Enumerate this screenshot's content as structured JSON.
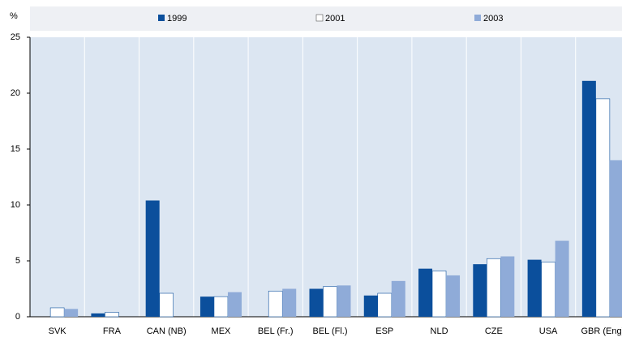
{
  "chart_data": {
    "type": "bar",
    "y_label": "%",
    "categories": [
      "SVK",
      "FRA",
      "CAN (NB)",
      "MEX",
      "BEL (Fr.)",
      "BEL (Fl.)",
      "ESP",
      "NLD",
      "CZE",
      "USA",
      "GBR (Eng)"
    ],
    "series": [
      {
        "name": "1999",
        "color": "#0b4f9c",
        "values": [
          null,
          0.3,
          10.4,
          1.8,
          null,
          2.5,
          1.9,
          4.3,
          4.7,
          5.1,
          21.1
        ]
      },
      {
        "name": "2001",
        "color": "#ffffff",
        "values": [
          0.8,
          0.4,
          2.1,
          1.8,
          2.3,
          2.7,
          2.1,
          4.1,
          5.2,
          4.9,
          19.5
        ]
      },
      {
        "name": "2003",
        "color": "#8fabd8",
        "values": [
          0.7,
          null,
          null,
          2.2,
          2.5,
          2.8,
          3.2,
          3.7,
          5.4,
          6.8,
          14.0
        ]
      }
    ],
    "ylim": [
      0,
      25
    ],
    "yticks": [
      0,
      5,
      10,
      15,
      20,
      25
    ],
    "legend": "top"
  }
}
